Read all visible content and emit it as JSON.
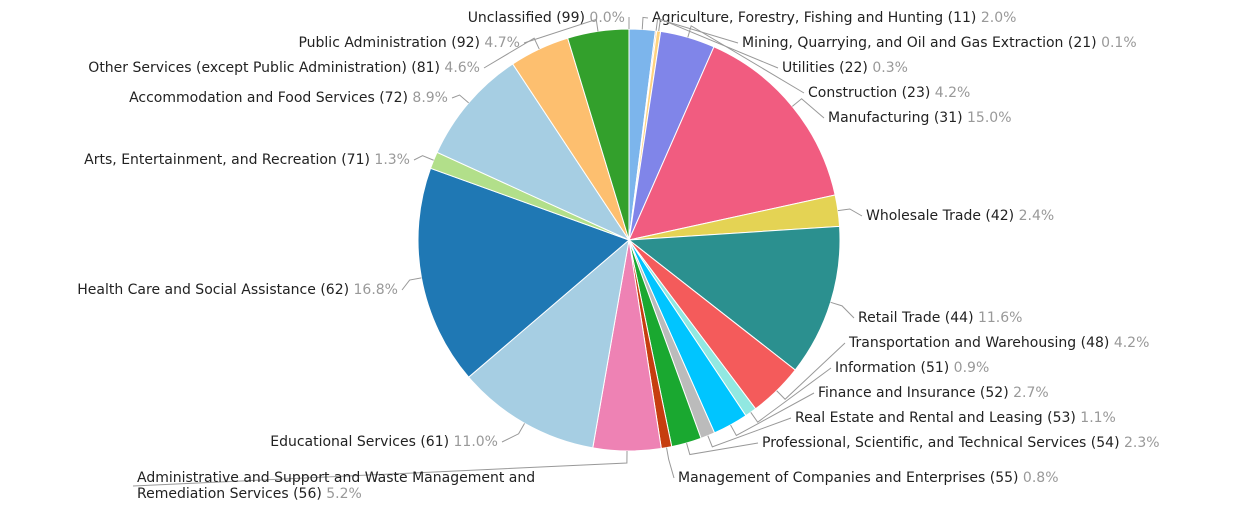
{
  "chart_data": {
    "type": "pie",
    "categories": [
      "Agriculture, Forestry, Fishing and Hunting (11)",
      "Mining, Quarrying, and Oil and Gas Extraction (21)",
      "Utilities (22)",
      "Construction (23)",
      "Manufacturing (31)",
      "Wholesale Trade (42)",
      "Retail Trade (44)",
      "Transportation and Warehousing (48)",
      "Information (51)",
      "Finance and Insurance (52)",
      "Real Estate and Rental and Leasing (53)",
      "Professional, Scientific, and Technical Services (54)",
      "Management of Companies and Enterprises (55)",
      "Administrative and Support and Waste Management and Remediation Services (56)",
      "Educational Services (61)",
      "Health Care and Social Assistance (62)",
      "Arts, Entertainment, and Recreation (71)",
      "Accommodation and Food Services (72)",
      "Other Services (except Public Administration) (81)",
      "Public Administration (92)",
      "Unclassified (99)"
    ],
    "values": [
      2.0,
      0.1,
      0.3,
      4.2,
      15.0,
      2.4,
      11.6,
      4.2,
      0.9,
      2.7,
      1.1,
      2.3,
      0.8,
      5.2,
      11.0,
      16.8,
      1.3,
      8.9,
      4.6,
      4.7,
      0.0
    ],
    "value_labels": [
      "2.0%",
      "0.1%",
      "0.3%",
      "4.2%",
      "15.0%",
      "2.4%",
      "11.6%",
      "4.2%",
      "0.9%",
      "2.7%",
      "1.1%",
      "2.3%",
      "0.8%",
      "5.2%",
      "11.0%",
      "16.8%",
      "1.3%",
      "8.9%",
      "4.6%",
      "4.7%",
      "0.0%"
    ],
    "colors": [
      "#7cb5ec",
      "#f7a35c",
      "#ffd27f",
      "#8085e9",
      "#f15c80",
      "#e4d354",
      "#2b908f",
      "#f45b5b",
      "#91e8e1",
      "#00c5ff",
      "#bbbbbb",
      "#1aa830",
      "#c63d0f",
      "#ee82b4",
      "#a6cee3",
      "#1f78b4",
      "#b2df8a",
      "#a6cee3",
      "#fdbf6f",
      "#33a02c",
      "#aaaaaa"
    ]
  }
}
